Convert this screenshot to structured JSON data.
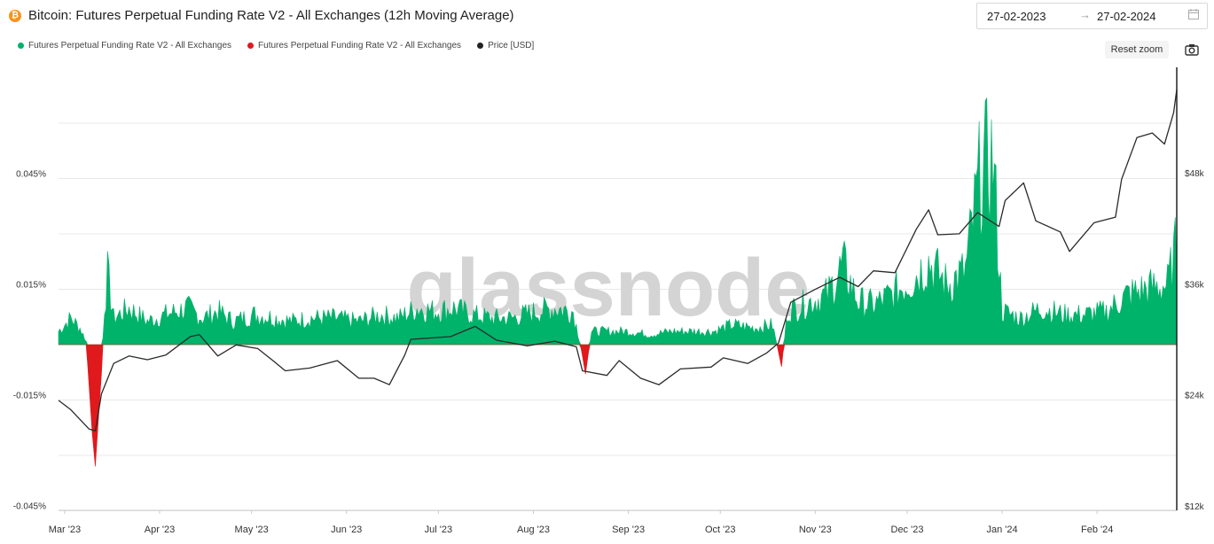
{
  "header": {
    "asset_icon": "bitcoin-icon",
    "title": "Bitcoin: Futures Perpetual Funding Rate V2 - All Exchanges (12h Moving Average)"
  },
  "date_range": {
    "start": "27-02-2023",
    "end": "27-02-2024",
    "arrow": "→",
    "icon": "calendar-icon"
  },
  "controls": {
    "reset_zoom_label": "Reset zoom",
    "screenshot_icon": "camera-icon"
  },
  "watermark": "glassnode",
  "chart_data": {
    "type": "area",
    "title": "Bitcoin: Futures Perpetual Funding Rate V2 - All Exchanges (12h Moving Average)",
    "legend": [
      {
        "name": "Futures Perpetual Funding Rate V2 - All Exchanges",
        "color": "#00b36b"
      },
      {
        "name": "Futures Perpetual Funding Rate V2 - All Exchanges",
        "color": "#e0191c"
      },
      {
        "name": "Price [USD]",
        "color": "#222222"
      }
    ],
    "legend_position": "top-left",
    "grid": true,
    "x_range": [
      "2023-02-27",
      "2024-02-27"
    ],
    "x_ticks": [
      "Mar '23",
      "Apr '23",
      "May '23",
      "Jun '23",
      "Jul '23",
      "Aug '23",
      "Sep '23",
      "Oct '23",
      "Nov '23",
      "Dec '23",
      "Jan '24",
      "Feb '24"
    ],
    "y_left": {
      "ticks": [
        "0.045%",
        "0.015%",
        "-0.015%",
        "-0.045%"
      ],
      "tick_values": [
        0.045,
        0.015,
        -0.015,
        -0.045
      ],
      "range": [
        -0.045,
        0.045
      ],
      "unit": "%"
    },
    "y_right": {
      "ticks": [
        "$48k",
        "$36k",
        "$24k",
        "$12k"
      ],
      "tick_values": [
        48000,
        36000,
        24000,
        12000
      ],
      "range": [
        12000,
        48000
      ],
      "unit": "USD"
    },
    "funding_rate": [
      {
        "x": "2023-02-27",
        "y": 0.004
      },
      {
        "x": "2023-03-03",
        "y": 0.008
      },
      {
        "x": "2023-03-06",
        "y": 0.005
      },
      {
        "x": "2023-03-08",
        "y": 0.001
      },
      {
        "x": "2023-03-10",
        "y": -0.024
      },
      {
        "x": "2023-03-11",
        "y": -0.033
      },
      {
        "x": "2023-03-13",
        "y": -0.008
      },
      {
        "x": "2023-03-14",
        "y": 0.012
      },
      {
        "x": "2023-03-15",
        "y": 0.021
      },
      {
        "x": "2023-03-17",
        "y": 0.008
      },
      {
        "x": "2023-03-22",
        "y": 0.011
      },
      {
        "x": "2023-03-28",
        "y": 0.007
      },
      {
        "x": "2023-04-03",
        "y": 0.009
      },
      {
        "x": "2023-04-10",
        "y": 0.011
      },
      {
        "x": "2023-04-15",
        "y": 0.008
      },
      {
        "x": "2023-04-20",
        "y": 0.01
      },
      {
        "x": "2023-04-25",
        "y": 0.007
      },
      {
        "x": "2023-05-02",
        "y": 0.009
      },
      {
        "x": "2023-05-09",
        "y": 0.008
      },
      {
        "x": "2023-05-14",
        "y": 0.007
      },
      {
        "x": "2023-05-20",
        "y": 0.008
      },
      {
        "x": "2023-05-28",
        "y": 0.008
      },
      {
        "x": "2023-06-05",
        "y": 0.007
      },
      {
        "x": "2023-06-12",
        "y": 0.009
      },
      {
        "x": "2023-06-18",
        "y": 0.008
      },
      {
        "x": "2023-06-24",
        "y": 0.011
      },
      {
        "x": "2023-06-30",
        "y": 0.01
      },
      {
        "x": "2023-07-06",
        "y": 0.011
      },
      {
        "x": "2023-07-12",
        "y": 0.009
      },
      {
        "x": "2023-07-18",
        "y": 0.008
      },
      {
        "x": "2023-07-25",
        "y": 0.008
      },
      {
        "x": "2023-08-02",
        "y": 0.01
      },
      {
        "x": "2023-08-08",
        "y": 0.011
      },
      {
        "x": "2023-08-14",
        "y": 0.01
      },
      {
        "x": "2023-08-17",
        "y": -0.003
      },
      {
        "x": "2023-08-18",
        "y": -0.008
      },
      {
        "x": "2023-08-20",
        "y": 0.004
      },
      {
        "x": "2023-08-25",
        "y": 0.004
      },
      {
        "x": "2023-09-01",
        "y": 0.004
      },
      {
        "x": "2023-09-08",
        "y": 0.003
      },
      {
        "x": "2023-09-15",
        "y": 0.004
      },
      {
        "x": "2023-09-22",
        "y": 0.004
      },
      {
        "x": "2023-09-29",
        "y": 0.004
      },
      {
        "x": "2023-10-05",
        "y": 0.006
      },
      {
        "x": "2023-10-12",
        "y": 0.005
      },
      {
        "x": "2023-10-18",
        "y": 0.006
      },
      {
        "x": "2023-10-21",
        "y": -0.006
      },
      {
        "x": "2023-10-23",
        "y": 0.01
      },
      {
        "x": "2023-10-28",
        "y": 0.012
      },
      {
        "x": "2023-11-05",
        "y": 0.015
      },
      {
        "x": "2023-11-10",
        "y": 0.024
      },
      {
        "x": "2023-11-15",
        "y": 0.013
      },
      {
        "x": "2023-11-20",
        "y": 0.012
      },
      {
        "x": "2023-11-26",
        "y": 0.015
      },
      {
        "x": "2023-12-03",
        "y": 0.02
      },
      {
        "x": "2023-12-08",
        "y": 0.025
      },
      {
        "x": "2023-12-14",
        "y": 0.018
      },
      {
        "x": "2023-12-20",
        "y": 0.022
      },
      {
        "x": "2023-12-25",
        "y": 0.052
      },
      {
        "x": "2023-12-29",
        "y": 0.056
      },
      {
        "x": "2024-01-01",
        "y": 0.01
      },
      {
        "x": "2024-01-07",
        "y": 0.008
      },
      {
        "x": "2024-01-14",
        "y": 0.011
      },
      {
        "x": "2024-01-21",
        "y": 0.009
      },
      {
        "x": "2024-01-28",
        "y": 0.009
      },
      {
        "x": "2024-02-04",
        "y": 0.01
      },
      {
        "x": "2024-02-11",
        "y": 0.015
      },
      {
        "x": "2024-02-18",
        "y": 0.017
      },
      {
        "x": "2024-02-24",
        "y": 0.018
      },
      {
        "x": "2024-02-27",
        "y": 0.03
      }
    ],
    "price": [
      {
        "x": "2023-02-27",
        "y": 23400
      },
      {
        "x": "2023-03-03",
        "y": 22400
      },
      {
        "x": "2023-03-09",
        "y": 20300
      },
      {
        "x": "2023-03-11",
        "y": 20100
      },
      {
        "x": "2023-03-13",
        "y": 24100
      },
      {
        "x": "2023-03-17",
        "y": 27400
      },
      {
        "x": "2023-03-22",
        "y": 28200
      },
      {
        "x": "2023-03-28",
        "y": 27800
      },
      {
        "x": "2023-04-03",
        "y": 28300
      },
      {
        "x": "2023-04-11",
        "y": 30300
      },
      {
        "x": "2023-04-14",
        "y": 30500
      },
      {
        "x": "2023-04-20",
        "y": 28200
      },
      {
        "x": "2023-04-26",
        "y": 29400
      },
      {
        "x": "2023-05-03",
        "y": 29000
      },
      {
        "x": "2023-05-08",
        "y": 27700
      },
      {
        "x": "2023-05-12",
        "y": 26600
      },
      {
        "x": "2023-05-20",
        "y": 26900
      },
      {
        "x": "2023-05-29",
        "y": 27700
      },
      {
        "x": "2023-06-05",
        "y": 25800
      },
      {
        "x": "2023-06-10",
        "y": 25800
      },
      {
        "x": "2023-06-15",
        "y": 25100
      },
      {
        "x": "2023-06-20",
        "y": 28300
      },
      {
        "x": "2023-06-22",
        "y": 30000
      },
      {
        "x": "2023-07-05",
        "y": 30300
      },
      {
        "x": "2023-07-13",
        "y": 31400
      },
      {
        "x": "2023-07-20",
        "y": 29900
      },
      {
        "x": "2023-07-30",
        "y": 29300
      },
      {
        "x": "2023-08-08",
        "y": 29800
      },
      {
        "x": "2023-08-15",
        "y": 29200
      },
      {
        "x": "2023-08-17",
        "y": 26600
      },
      {
        "x": "2023-08-25",
        "y": 26100
      },
      {
        "x": "2023-08-29",
        "y": 27700
      },
      {
        "x": "2023-09-05",
        "y": 25800
      },
      {
        "x": "2023-09-11",
        "y": 25100
      },
      {
        "x": "2023-09-18",
        "y": 26800
      },
      {
        "x": "2023-09-28",
        "y": 27000
      },
      {
        "x": "2023-10-02",
        "y": 28000
      },
      {
        "x": "2023-10-10",
        "y": 27400
      },
      {
        "x": "2023-10-16",
        "y": 28500
      },
      {
        "x": "2023-10-20",
        "y": 29600
      },
      {
        "x": "2023-10-24",
        "y": 34000
      },
      {
        "x": "2023-11-01",
        "y": 35400
      },
      {
        "x": "2023-11-09",
        "y": 36700
      },
      {
        "x": "2023-11-15",
        "y": 35700
      },
      {
        "x": "2023-11-20",
        "y": 37400
      },
      {
        "x": "2023-11-27",
        "y": 37200
      },
      {
        "x": "2023-12-04",
        "y": 41900
      },
      {
        "x": "2023-12-08",
        "y": 44000
      },
      {
        "x": "2023-12-11",
        "y": 41300
      },
      {
        "x": "2023-12-18",
        "y": 41400
      },
      {
        "x": "2023-12-24",
        "y": 43700
      },
      {
        "x": "2023-12-31",
        "y": 42200
      },
      {
        "x": "2024-01-02",
        "y": 45000
      },
      {
        "x": "2024-01-08",
        "y": 46900
      },
      {
        "x": "2024-01-12",
        "y": 42800
      },
      {
        "x": "2024-01-20",
        "y": 41600
      },
      {
        "x": "2024-01-23",
        "y": 39500
      },
      {
        "x": "2024-01-31",
        "y": 42600
      },
      {
        "x": "2024-02-07",
        "y": 43200
      },
      {
        "x": "2024-02-09",
        "y": 47300
      },
      {
        "x": "2024-02-14",
        "y": 51800
      },
      {
        "x": "2024-02-19",
        "y": 52300
      },
      {
        "x": "2024-02-23",
        "y": 51100
      },
      {
        "x": "2024-02-26",
        "y": 54500
      },
      {
        "x": "2024-02-27",
        "y": 57000
      }
    ]
  }
}
